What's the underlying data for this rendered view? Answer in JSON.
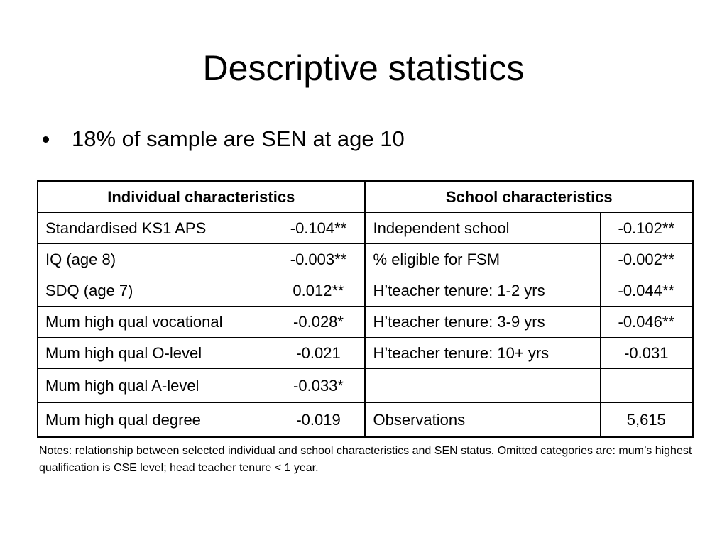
{
  "slide": {
    "title": "Descriptive statistics",
    "bullets": [
      "18% of sample are SEN at age 10"
    ]
  },
  "table": {
    "headers": {
      "individual": "Individual characteristics",
      "school": "School characteristics"
    },
    "rows": [
      {
        "ind_label": "Standardised KS1 APS",
        "ind_value": "-0.104**",
        "sch_label": "Independent school",
        "sch_value": "-0.102**"
      },
      {
        "ind_label": "IQ (age 8)",
        "ind_value": "-0.003**",
        "sch_label": "% eligible for FSM",
        "sch_value": "-0.002**"
      },
      {
        "ind_label": "SDQ (age 7)",
        "ind_value": "0.012**",
        "sch_label": "H’teacher tenure: 1-2 yrs",
        "sch_value": "-0.044**"
      },
      {
        "ind_label": "Mum high qual vocational",
        "ind_value": "-0.028*",
        "sch_label": "H’teacher tenure: 3-9 yrs",
        "sch_value": "-0.046**"
      },
      {
        "ind_label": "Mum high qual O-level",
        "ind_value": "-0.021",
        "sch_label": "H’teacher tenure: 10+ yrs",
        "sch_value": "-0.031"
      },
      {
        "ind_label": "Mum high qual A-level",
        "ind_value": "-0.033*",
        "sch_label": "",
        "sch_value": ""
      },
      {
        "ind_label": "Mum high qual degree",
        "ind_value": "-0.019",
        "sch_label": "Observations",
        "sch_value": "5,615"
      }
    ]
  },
  "notes": "Notes: relationship between selected individual and school characteristics and SEN status. Omitted categories are: mum’s highest qualification is CSE level; head teacher tenure < 1 year."
}
